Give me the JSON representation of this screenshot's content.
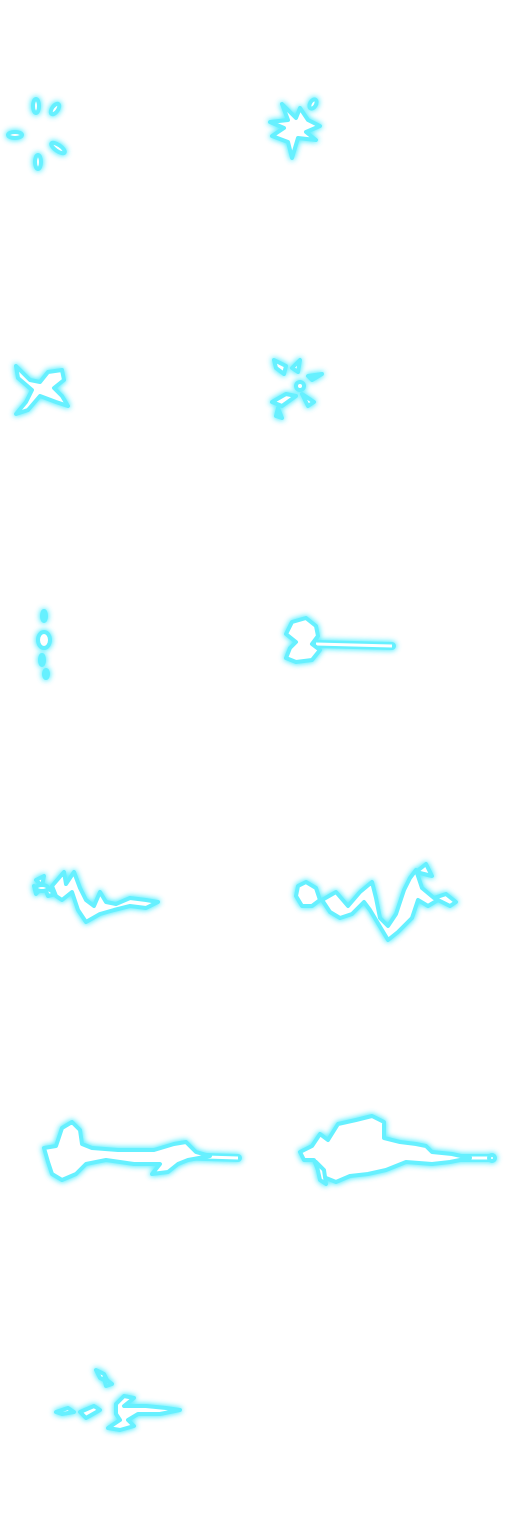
{
  "sheet": {
    "background": "#ffffff",
    "glow_color": "#66f0ff",
    "core_color": "#ffffff",
    "columns": 2,
    "rows": 6,
    "frame_count": 11
  },
  "frames": [
    {
      "name": "frame-1",
      "effect": "electric-spark-burst-fragments"
    },
    {
      "name": "frame-2",
      "effect": "electric-spark-star"
    },
    {
      "name": "frame-3",
      "effect": "electric-spark-fork"
    },
    {
      "name": "frame-4",
      "effect": "electric-spark-fade"
    },
    {
      "name": "frame-5",
      "effect": "electric-dot"
    },
    {
      "name": "frame-6",
      "effect": "electric-bolt-start"
    },
    {
      "name": "frame-7",
      "effect": "electric-arc-small"
    },
    {
      "name": "frame-8",
      "effect": "electric-arc-large"
    },
    {
      "name": "frame-9",
      "effect": "electric-bolt-full"
    },
    {
      "name": "frame-10",
      "effect": "electric-bolt-trail"
    },
    {
      "name": "frame-11",
      "effect": "electric-bolt-dissipate"
    }
  ]
}
